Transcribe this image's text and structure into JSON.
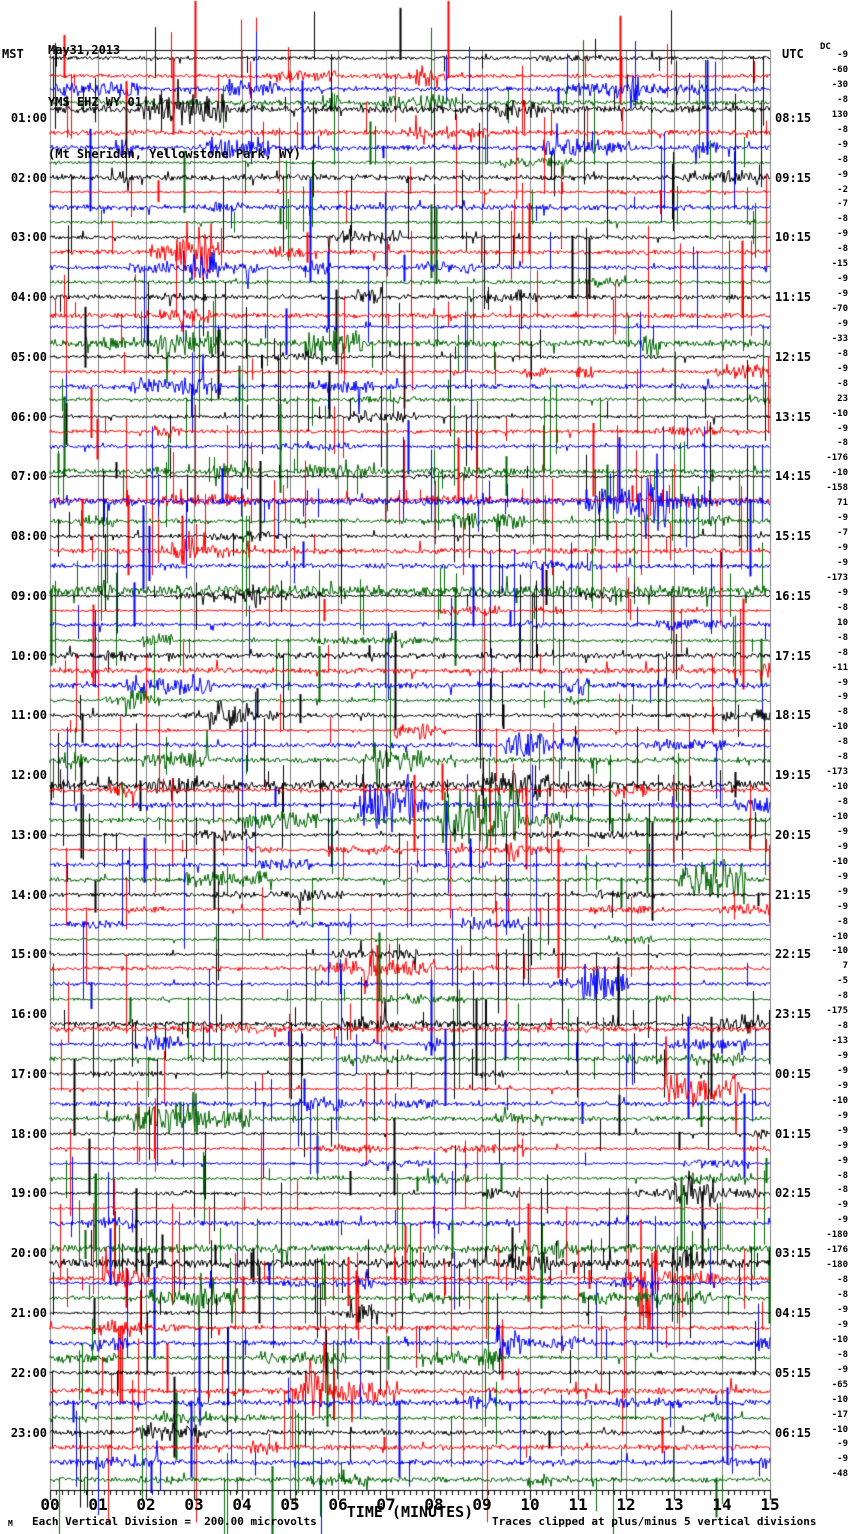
{
  "header": {
    "date": "May31,2013",
    "station": "YMS EHZ WY 01",
    "location": "(Mt Sheridan, Yellowstone Park, WY)"
  },
  "axes": {
    "left_title": "MST",
    "right_title": "UTC",
    "dc_label": "DC",
    "x_title": "TIME (MINUTES)",
    "x_tick_labels": [
      "00",
      "01",
      "02",
      "03",
      "04",
      "05",
      "06",
      "07",
      "08",
      "09",
      "10",
      "11",
      "12",
      "13",
      "14",
      "15"
    ],
    "left_time_labels": [
      "01:00",
      "02:00",
      "03:00",
      "04:00",
      "05:00",
      "06:00",
      "07:00",
      "08:00",
      "09:00",
      "10:00",
      "11:00",
      "12:00",
      "13:00",
      "14:00",
      "15:00",
      "16:00",
      "17:00",
      "18:00",
      "19:00",
      "20:00",
      "21:00",
      "22:00",
      "23:00"
    ],
    "right_time_labels": [
      "08:15",
      "09:15",
      "10:15",
      "11:15",
      "12:15",
      "13:15",
      "14:15",
      "15:15",
      "16:15",
      "17:15",
      "18:15",
      "19:15",
      "20:15",
      "21:15",
      "22:15",
      "23:15",
      "00:15",
      "01:15",
      "02:15",
      "03:15",
      "04:15",
      "05:15",
      "06:15"
    ]
  },
  "footer": {
    "scale_note": "Each Vertical Division =  200.00 microvolts",
    "clip_note": "Traces clipped at plus/minus 5 vertical divisions",
    "corner_mark": "M"
  },
  "chart_data": {
    "type": "line",
    "variant": "helicorder-seismogram",
    "title": "YMS EHZ WY 01 (Mt Sheridan, Yellowstone Park, WY) May31,2013",
    "xlabel": "TIME (MINUTES)",
    "x_range_minutes": [
      0,
      15
    ],
    "rows": 96,
    "minutes_per_row": 15,
    "rows_per_hour": 4,
    "hour_label_row_step": 4,
    "first_labeled_row_index": 4,
    "row_color_cycle": [
      "#000000",
      "#ff0000",
      "#0000ff",
      "#006600"
    ],
    "grid_color": "#808080",
    "grid": "vertical gray line each minute",
    "scale_microvolts_per_division": 200.0,
    "clip_divisions": 5,
    "dc_offsets_by_row": [
      -9,
      -60,
      -30,
      -8,
      130,
      -8,
      -9,
      -8,
      -9,
      -2,
      -7,
      -8,
      -9,
      -8,
      -15,
      -9,
      -9,
      -70,
      -9,
      -33,
      -8,
      -9,
      -8,
      23,
      -10,
      -9,
      -8,
      -176,
      -10,
      -158,
      71,
      -9,
      -7,
      -9,
      -9,
      -173,
      -9,
      -8,
      10,
      -8,
      -8,
      -11,
      -9,
      -9,
      -8,
      -10,
      -8,
      -8,
      -173,
      -10,
      -8,
      -10,
      -9,
      -9,
      -10,
      -9,
      -9,
      -9,
      -8,
      -10,
      -10,
      7,
      -5,
      -8,
      -175,
      -8,
      -13,
      -9,
      -9,
      -9,
      -10,
      -9,
      -9,
      -9,
      -9,
      -8,
      -8,
      -9,
      -9,
      -180,
      -176,
      -180,
      -8,
      -8,
      -9,
      -9,
      -10,
      -8,
      -9,
      -65,
      -10,
      -17,
      -10,
      -9,
      -9,
      -48
    ]
  }
}
